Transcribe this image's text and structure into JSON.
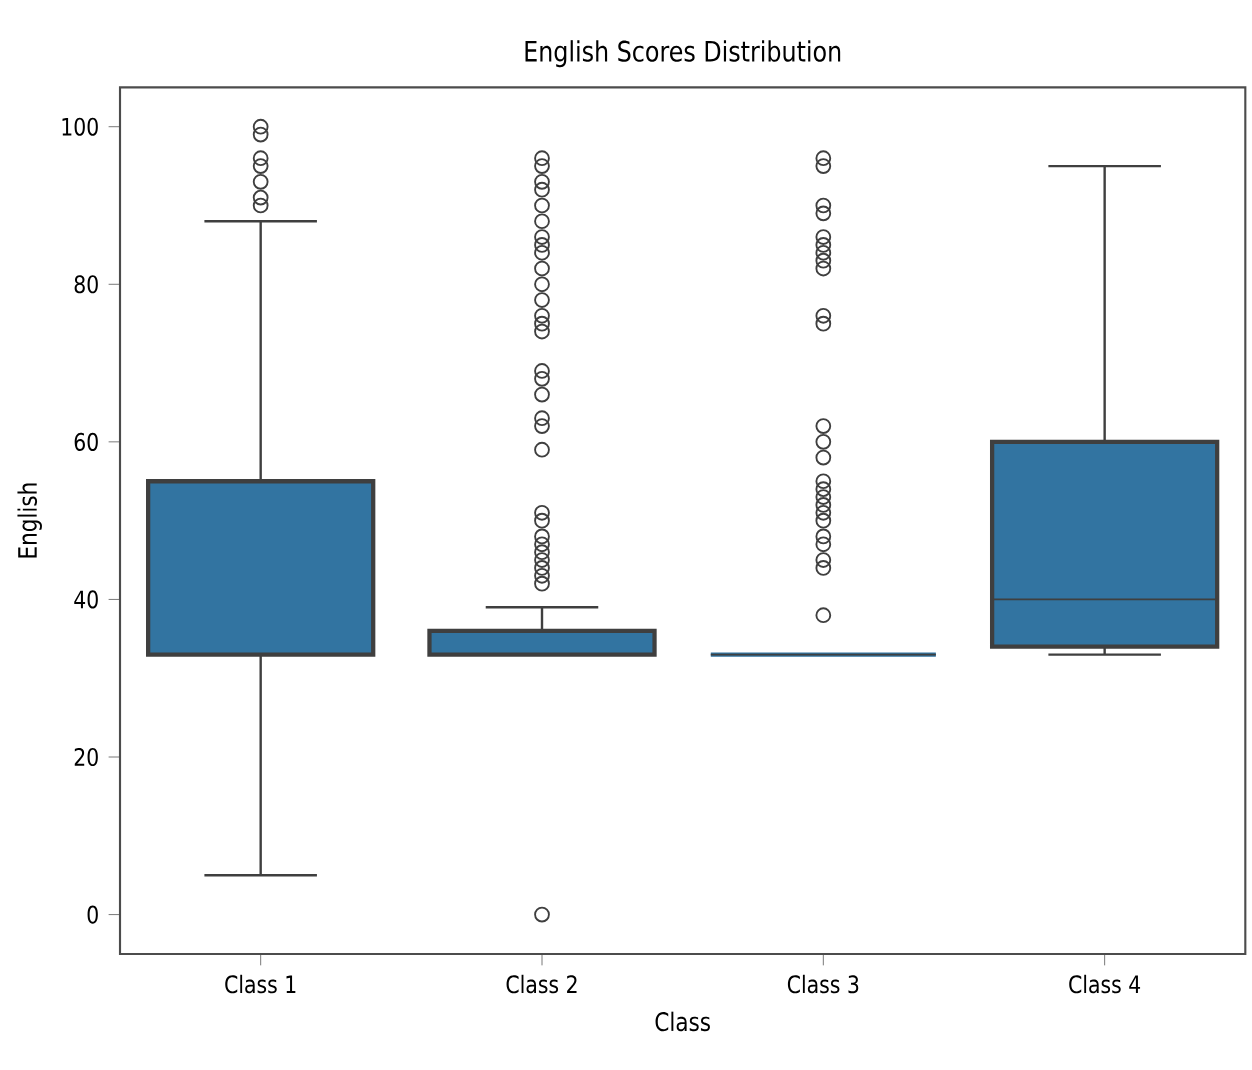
{
  "chart_data": {
    "type": "box",
    "title": "English Scores Distribution",
    "xlabel": "Class",
    "ylabel": "English",
    "categories": [
      "Class 1",
      "Class 2",
      "Class 3",
      "Class 4"
    ],
    "color": "#3274a1",
    "boxes": [
      {
        "low": 5,
        "q1": 33,
        "median": 55,
        "q3": 55,
        "high": 88,
        "outliers": [
          90,
          91,
          93,
          95,
          96,
          99,
          100
        ]
      },
      {
        "low": 33,
        "q1": 33,
        "median": 33,
        "q3": 36,
        "high": 39,
        "outliers": [
          0,
          42,
          43,
          44,
          45,
          46,
          47,
          48,
          50,
          51,
          59,
          62,
          63,
          66,
          68,
          69,
          74,
          75,
          76,
          78,
          80,
          82,
          84,
          85,
          86,
          88,
          90,
          92,
          93,
          95,
          96
        ]
      },
      {
        "low": 33,
        "q1": 33,
        "median": 33,
        "q3": 33,
        "high": 33,
        "outliers": [
          38,
          44,
          45,
          47,
          48,
          50,
          51,
          52,
          53,
          54,
          55,
          58,
          60,
          62,
          75,
          76,
          82,
          83,
          84,
          85,
          86,
          89,
          90,
          95,
          96
        ]
      },
      {
        "low": 33,
        "q1": 34,
        "median": 40,
        "q3": 60,
        "high": 95
      }
    ],
    "ylim": [
      -5,
      105
    ],
    "yticks": [
      0,
      20,
      40,
      60,
      80,
      100
    ],
    "grid": false
  }
}
